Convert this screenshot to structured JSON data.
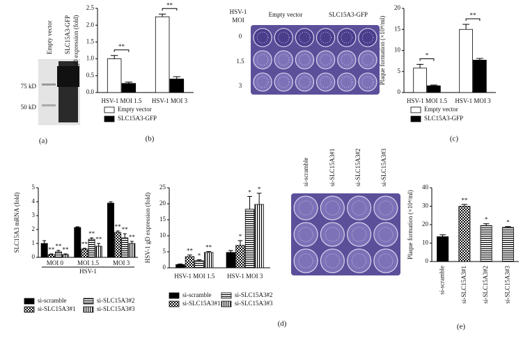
{
  "chart_data": [
    {
      "type": "bar",
      "ylabel": "HSV-1 gD expression (fold)",
      "categories": [
        "HSV-1 MOI 1.5",
        "HSV-1 MOI 3"
      ],
      "series": [
        {
          "name": "Empty vector",
          "color": "#ffffff",
          "values": [
            1.0,
            2.25
          ],
          "errors": [
            0.1,
            0.08
          ]
        },
        {
          "name": "SLC15A3-GFP",
          "color": "#000000",
          "values": [
            0.27,
            0.4
          ],
          "errors": [
            0.04,
            0.07
          ]
        }
      ],
      "brackets": [
        "**",
        "**"
      ],
      "ylim": [
        0,
        2.5
      ],
      "yticks": [
        {
          "value": 0,
          "label": "0.0"
        },
        {
          "value": 0.5,
          "label": "0.5"
        },
        {
          "value": 1,
          "label": "1.0"
        },
        {
          "value": 1.5,
          "label": "1.5"
        },
        {
          "value": 2,
          "label": "2.0"
        },
        {
          "value": 2.5,
          "label": "2.5"
        }
      ]
    },
    {
      "type": "bar",
      "ylabel": "Plaque formation (×10⁴/ml)",
      "categories": [
        "HSV-1 MOI 1.5",
        "HSV-1 MOI 3"
      ],
      "series": [
        {
          "name": "Empty vector",
          "color": "#ffffff",
          "values": [
            5.8,
            15.0
          ],
          "errors": [
            0.9,
            1.2
          ]
        },
        {
          "name": "SLC15A3-GFP",
          "color": "#000000",
          "values": [
            1.6,
            7.7
          ],
          "errors": [
            0.2,
            0.4
          ]
        }
      ],
      "brackets": [
        "*",
        "**"
      ],
      "ylim": [
        0,
        20
      ],
      "yticks": [
        0,
        5,
        10,
        15,
        20
      ]
    },
    {
      "type": "bar",
      "ylabel": "SLC15A3 mRNA (fold)",
      "xlabel": "HSV-1",
      "categories": [
        "MOI 0",
        "MOI 1.5",
        "MOI 3"
      ],
      "series": [
        {
          "name": "si-scramble",
          "color": "#000000",
          "pattern": "solid",
          "values": [
            1.0,
            2.15,
            3.9
          ],
          "errors": [
            0.2,
            0.05,
            0.1
          ],
          "significance": [
            null,
            null,
            null
          ]
        },
        {
          "name": "si-SLC15A3#1",
          "color": "#000000",
          "pattern": "checker",
          "values": [
            0.2,
            0.6,
            1.8
          ],
          "errors": [
            0.05,
            0.05,
            0.1
          ],
          "significance": [
            "**",
            "**",
            "**"
          ]
        },
        {
          "name": "si-SLC15A3#2",
          "color": "#000000",
          "pattern": "hstripe",
          "values": [
            0.4,
            1.3,
            1.4
          ],
          "errors": [
            0.1,
            0.1,
            0.3
          ],
          "significance": [
            "**",
            "**",
            "**"
          ]
        },
        {
          "name": "si-SLC15A3#3",
          "color": "#000000",
          "pattern": "vstripe",
          "values": [
            0.2,
            0.8,
            1.0
          ],
          "errors": [
            0.05,
            0.2,
            0.15
          ],
          "significance": [
            "**",
            "**",
            "**"
          ]
        }
      ],
      "ylim": [
        0,
        5
      ],
      "yticks": [
        0,
        1,
        2,
        3,
        4,
        5
      ]
    },
    {
      "type": "bar",
      "ylabel": "HSV-1 gD expression (fold)",
      "categories": [
        "HSV-1 MOI 1.5",
        "HSV-1 MOI 3"
      ],
      "series": [
        {
          "name": "si-scramble",
          "color": "#000000",
          "pattern": "solid",
          "values": [
            1.0,
            4.8
          ],
          "errors": [
            0.2,
            0.6
          ],
          "significance": [
            null,
            null
          ]
        },
        {
          "name": "si-SLC15A3#1",
          "color": "#000000",
          "pattern": "checker",
          "values": [
            3.5,
            7.0
          ],
          "errors": [
            0.5,
            1.5
          ],
          "significance": [
            "**",
            "*"
          ]
        },
        {
          "name": "si-SLC15A3#2",
          "color": "#000000",
          "pattern": "hstripe",
          "values": [
            2.2,
            18.3
          ],
          "errors": [
            0.3,
            4.0
          ],
          "significance": [
            "*",
            "*"
          ]
        },
        {
          "name": "si-SLC15A3#3",
          "color": "#000000",
          "pattern": "vstripe",
          "values": [
            4.8,
            19.8
          ],
          "errors": [
            0.3,
            3.5
          ],
          "significance": [
            "**",
            "*"
          ]
        }
      ],
      "ylim": [
        0,
        25
      ],
      "yticks": [
        0,
        5,
        10,
        15,
        20,
        25
      ]
    },
    {
      "type": "bar",
      "ylabel": "Plaque formation (×10⁴/ml)",
      "categories": [
        "si-scramble",
        "si-SLC15A3#1",
        "si-SLC15A3#2",
        "si-SLC15A3#3"
      ],
      "color": "#000000",
      "patterns": [
        "solid",
        "checker",
        "hstripe",
        "hstripe"
      ],
      "values": [
        13.5,
        30.0,
        19.5,
        18.5
      ],
      "errors": [
        1.0,
        1.0,
        1.0,
        0.5
      ],
      "significance": [
        null,
        "**",
        "*",
        "*"
      ],
      "ylim": [
        0,
        40
      ],
      "yticks": [
        0,
        10,
        20,
        30,
        40
      ]
    }
  ],
  "blot": {
    "lanes": [
      "Empty vector",
      "SLC15A3-GFP"
    ],
    "markers": [
      "75 kD",
      "50 kD"
    ]
  },
  "plaque_c": {
    "row_title": [
      "HSV-1",
      "MOI"
    ],
    "columns": [
      "Empty vector",
      "SLC15A3-GFP"
    ],
    "rows": [
      "0",
      "1.5",
      "3"
    ]
  },
  "plaque_e": {
    "columns": [
      "si-scramble",
      "si-SLC15A3#1",
      "si-SLC15A3#2",
      "si-SLC15A3#3"
    ]
  },
  "panel_labels": [
    "(a)",
    "(b)",
    "(c)",
    "(d)",
    "(e)"
  ]
}
